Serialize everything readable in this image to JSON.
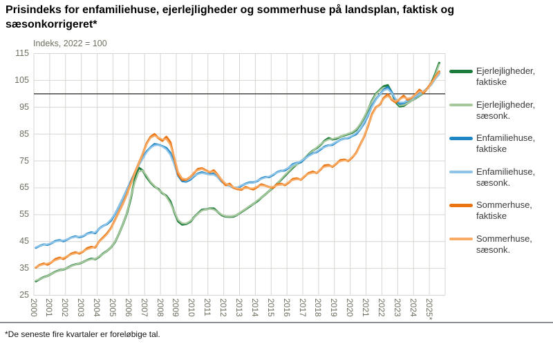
{
  "title": "Prisindeks for enfamiliehuse, ejerlejligheder og sommerhuse på landsplan, faktisk og sæsonkorrigeret*",
  "subtitle": "Indeks, 2022 = 100",
  "footnote": "*De seneste fire kvartaler er foreløbige tal.",
  "colors": {
    "grid": "#d4d4d0",
    "reference_line": "#55554f",
    "axis_text": "#6e6e60",
    "legend_text": "#3a3a3a",
    "divider": "#8a9096"
  },
  "chart_data": {
    "type": "line",
    "x_unit": "quarter",
    "x_start_year": 2000,
    "points_per_year": 4,
    "xlim_years": [
      2000,
      2026
    ],
    "ylim": [
      25,
      115
    ],
    "y_axis_ticks": [
      115,
      105,
      95,
      85,
      75,
      65,
      55,
      45,
      35,
      25
    ],
    "x_axis_ticks": [
      "2000",
      "2001",
      "2002",
      "2003",
      "2004",
      "2005",
      "2006",
      "2007",
      "2008",
      "2009",
      "2010",
      "2011",
      "2012",
      "2013",
      "2014",
      "2015",
      "2016",
      "2017",
      "2018",
      "2019",
      "2020",
      "2021",
      "2022",
      "2023",
      "2024",
      "2025*"
    ],
    "reference_line": 100,
    "grid": true,
    "legend_position": "right",
    "series": [
      {
        "name": "Ejerlejligheder, faktiske",
        "kind": "faktiske",
        "color": "#1c7c3c",
        "values": [
          30.2,
          31.0,
          31.7,
          32.2,
          33.0,
          33.8,
          34.3,
          34.6,
          35.2,
          36.0,
          36.5,
          36.8,
          37.4,
          38.1,
          38.6,
          38.4,
          39.3,
          40.5,
          41.5,
          42.8,
          44.8,
          47.8,
          51.3,
          55.3,
          61.0,
          68.0,
          72.5,
          71.5,
          69.0,
          67.0,
          65.5,
          64.5,
          63.0,
          62.0,
          60.0,
          56.0,
          52.5,
          51.3,
          51.5,
          52.3,
          54.0,
          55.5,
          56.8,
          57.0,
          57.3,
          57.3,
          56.0,
          54.8,
          54.3,
          54.2,
          54.3,
          55.0,
          56.0,
          57.0,
          58.0,
          59.0,
          60.0,
          61.3,
          62.5,
          63.8,
          65.0,
          66.5,
          68.0,
          69.5,
          71.0,
          72.5,
          73.8,
          74.8,
          76.0,
          77.5,
          78.8,
          79.8,
          81.0,
          82.5,
          83.5,
          83.0,
          83.3,
          84.0,
          84.5,
          85.0,
          85.5,
          86.5,
          88.5,
          91.0,
          94.0,
          97.5,
          100.0,
          101.5,
          102.8,
          103.2,
          100.5,
          96.8,
          95.3,
          95.5,
          96.5,
          97.5,
          98.3,
          99.3,
          100.3,
          102.0,
          104.0,
          107.5,
          111.5
        ]
      },
      {
        "name": "Ejerlejligheder, sæsonk.",
        "kind": "saesonk",
        "color": "#a6c79b",
        "values": [
          30.5,
          31.0,
          31.6,
          32.2,
          33.0,
          33.7,
          34.2,
          34.7,
          35.2,
          35.9,
          36.4,
          36.9,
          37.4,
          38.0,
          38.4,
          38.5,
          39.4,
          40.4,
          41.5,
          42.8,
          44.9,
          47.8,
          51.3,
          55.4,
          61.5,
          67.0,
          71.0,
          71.5,
          69.5,
          67.2,
          65.7,
          64.3,
          63.2,
          61.7,
          59.3,
          56.2,
          53.0,
          51.8,
          51.7,
          52.6,
          53.9,
          55.4,
          56.5,
          57.0,
          57.2,
          56.9,
          56.0,
          55.0,
          54.4,
          54.3,
          54.5,
          55.0,
          56.2,
          57.1,
          58.2,
          59.0,
          60.3,
          61.3,
          62.5,
          63.8,
          65.2,
          66.5,
          68.2,
          69.8,
          71.2,
          72.8,
          73.7,
          75.0,
          76.2,
          77.4,
          78.7,
          80.0,
          81.2,
          82.3,
          83.0,
          83.2,
          83.6,
          84.0,
          84.6,
          85.2,
          85.7,
          86.8,
          88.7,
          91.2,
          94.2,
          97.2,
          99.8,
          101.3,
          102.3,
          102.2,
          100.2,
          97.5,
          95.7,
          95.8,
          96.5,
          97.4,
          98.4,
          99.4,
          100.4,
          101.8,
          103.8,
          107.0,
          111.0
        ]
      },
      {
        "name": "Enfamiliehuse, faktiske",
        "kind": "faktiske",
        "color": "#1f86c6",
        "values": [
          42.7,
          43.4,
          43.9,
          43.8,
          44.4,
          45.2,
          45.5,
          45.1,
          45.8,
          46.5,
          46.9,
          46.6,
          47.0,
          47.9,
          48.4,
          48.1,
          49.8,
          50.8,
          51.5,
          52.8,
          55.2,
          58.0,
          61.0,
          64.1,
          67.3,
          70.5,
          73.5,
          76.0,
          78.5,
          80.0,
          81.3,
          81.0,
          80.5,
          79.8,
          78.0,
          74.0,
          69.5,
          67.5,
          67.3,
          68.0,
          69.3,
          70.3,
          70.8,
          70.3,
          70.0,
          70.3,
          69.0,
          67.3,
          66.3,
          65.8,
          65.0,
          64.9,
          65.8,
          66.5,
          67.0,
          67.0,
          67.5,
          68.5,
          69.0,
          69.0,
          69.8,
          70.8,
          71.3,
          71.5,
          72.5,
          73.8,
          74.3,
          74.5,
          75.8,
          77.0,
          77.8,
          78.3,
          79.3,
          80.3,
          80.8,
          81.0,
          82.0,
          82.8,
          83.3,
          83.5,
          84.3,
          85.0,
          86.8,
          89.0,
          92.0,
          95.5,
          98.0,
          99.8,
          101.5,
          102.5,
          100.5,
          97.5,
          96.3,
          96.5,
          97.5,
          98.3,
          98.8,
          100.0,
          100.8,
          102.0,
          103.5,
          105.8,
          107.8
        ]
      },
      {
        "name": "Enfamiliehuse, sæsonk.",
        "kind": "saesonk",
        "color": "#8fc4e9",
        "values": [
          42.9,
          43.4,
          43.8,
          44.0,
          44.5,
          45.0,
          45.3,
          45.4,
          45.9,
          46.4,
          46.7,
          46.8,
          47.2,
          47.8,
          48.1,
          48.4,
          49.8,
          50.7,
          51.7,
          53.2,
          55.4,
          58.1,
          61.1,
          64.1,
          67.1,
          70.4,
          73.3,
          75.9,
          78.2,
          79.9,
          80.8,
          80.9,
          80.4,
          79.3,
          77.3,
          73.8,
          69.7,
          68.1,
          67.6,
          68.3,
          69.5,
          70.1,
          70.5,
          70.2,
          69.9,
          69.9,
          68.9,
          67.4,
          66.0,
          65.6,
          65.2,
          65.2,
          66.0,
          66.4,
          66.8,
          66.8,
          67.7,
          68.3,
          68.8,
          69.2,
          70.0,
          70.7,
          71.2,
          71.8,
          72.6,
          73.5,
          74.2,
          74.9,
          75.9,
          76.8,
          77.6,
          78.5,
          79.6,
          80.1,
          80.7,
          81.3,
          82.1,
          82.7,
          83.2,
          83.7,
          84.4,
          85.4,
          86.9,
          89.4,
          92.2,
          95.2,
          97.8,
          99.8,
          101.3,
          101.8,
          100.2,
          98.1,
          96.8,
          96.8,
          97.4,
          98.1,
          98.9,
          99.9,
          100.9,
          101.9,
          103.4,
          105.5,
          107.2
        ]
      },
      {
        "name": "Sommerhuse, faktiske",
        "kind": "faktiske",
        "color": "#ea7312",
        "values": [
          35.3,
          36.3,
          36.8,
          36.4,
          37.3,
          38.5,
          39.0,
          38.5,
          39.5,
          40.5,
          41.0,
          40.5,
          41.3,
          42.5,
          43.0,
          42.8,
          45.0,
          46.5,
          48.0,
          50.0,
          53.0,
          56.0,
          59.0,
          62.5,
          66.5,
          70.5,
          74.0,
          77.5,
          81.5,
          84.0,
          85.0,
          83.5,
          82.5,
          84.0,
          82.0,
          76.0,
          70.0,
          68.0,
          68.0,
          69.0,
          70.5,
          72.0,
          72.3,
          71.5,
          70.8,
          71.5,
          69.8,
          67.8,
          66.0,
          66.5,
          65.0,
          64.5,
          64.3,
          65.3,
          64.8,
          64.4,
          65.3,
          66.3,
          65.8,
          65.3,
          65.0,
          66.3,
          66.5,
          66.0,
          67.0,
          68.3,
          68.5,
          68.0,
          69.3,
          70.5,
          71.0,
          70.5,
          71.8,
          73.3,
          73.5,
          72.8,
          74.0,
          75.3,
          75.5,
          75.0,
          76.3,
          78.0,
          81.0,
          84.0,
          88.0,
          92.5,
          95.0,
          96.0,
          98.5,
          99.8,
          97.8,
          96.8,
          98.0,
          99.3,
          97.8,
          98.5,
          99.8,
          101.5,
          100.3,
          102.0,
          104.0,
          106.3,
          108.3
        ]
      },
      {
        "name": "Sommerhuse, sæsonk.",
        "kind": "saesonk",
        "color": "#f7ab64",
        "values": [
          35.5,
          36.1,
          36.5,
          36.8,
          37.4,
          38.1,
          38.6,
          38.9,
          39.6,
          40.2,
          40.6,
          40.8,
          41.4,
          42.1,
          42.6,
          43.1,
          44.9,
          46.2,
          47.7,
          49.8,
          52.8,
          55.8,
          58.9,
          62.3,
          66.3,
          70.3,
          74.0,
          77.6,
          81.2,
          83.6,
          84.4,
          83.7,
          83.0,
          83.2,
          81.0,
          76.5,
          70.8,
          68.5,
          68.2,
          69.0,
          70.8,
          71.6,
          72.0,
          71.3,
          71.0,
          71.0,
          69.8,
          68.0,
          66.5,
          66.0,
          65.2,
          64.7,
          64.6,
          64.9,
          64.8,
          64.8,
          65.5,
          65.9,
          65.7,
          65.3,
          65.4,
          65.9,
          66.2,
          66.2,
          67.2,
          67.9,
          68.2,
          68.1,
          69.5,
          70.2,
          70.6,
          70.6,
          72.0,
          72.8,
          73.1,
          73.0,
          74.2,
          74.9,
          75.2,
          75.2,
          76.5,
          77.8,
          80.8,
          84.2,
          88.2,
          92.2,
          94.8,
          96.2,
          98.2,
          99.2,
          98.0,
          97.2,
          98.0,
          98.7,
          98.2,
          98.6,
          99.7,
          100.9,
          100.7,
          101.8,
          103.8,
          106.0,
          108.0
        ]
      }
    ]
  }
}
